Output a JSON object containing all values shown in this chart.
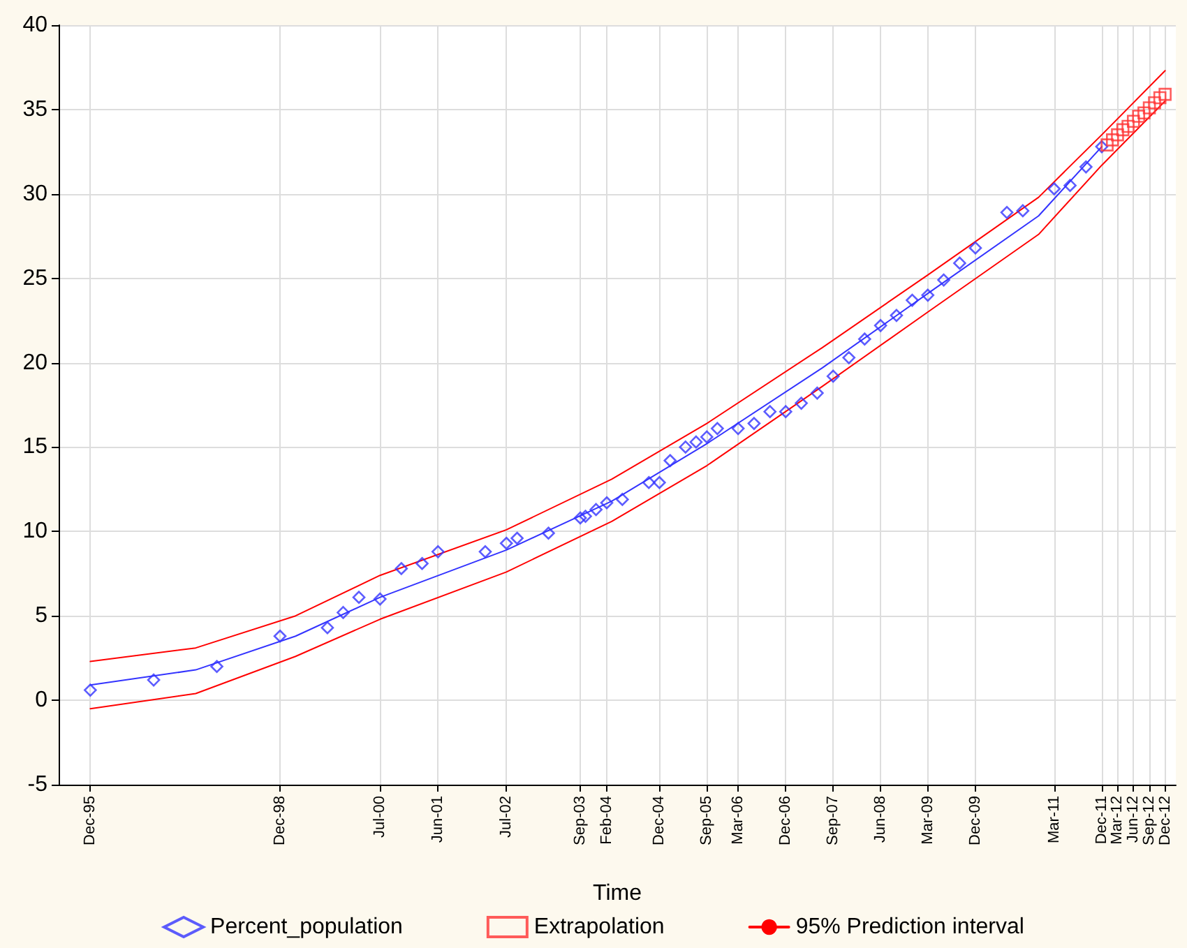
{
  "chart_data": {
    "type": "scatter",
    "xlabel": "Time",
    "xlim": [
      "1995-06",
      "2013-02"
    ],
    "ylim": [
      -5,
      40
    ],
    "xticks": [
      {
        "value": "1995-12",
        "label": "Dec-95"
      },
      {
        "value": "1998-12",
        "label": "Dec-98"
      },
      {
        "value": "2000-07",
        "label": "Jul-00"
      },
      {
        "value": "2001-06",
        "label": "Jun-01"
      },
      {
        "value": "2002-07",
        "label": "Jul-02"
      },
      {
        "value": "2003-09",
        "label": "Sep-03"
      },
      {
        "value": "2004-02",
        "label": "Feb-04"
      },
      {
        "value": "2004-12",
        "label": "Dec-04"
      },
      {
        "value": "2005-09",
        "label": "Sep-05"
      },
      {
        "value": "2006-03",
        "label": "Mar-06"
      },
      {
        "value": "2006-12",
        "label": "Dec-06"
      },
      {
        "value": "2007-09",
        "label": "Sep-07"
      },
      {
        "value": "2008-06",
        "label": "Jun-08"
      },
      {
        "value": "2009-03",
        "label": "Mar-09"
      },
      {
        "value": "2009-12",
        "label": "Dec-09"
      },
      {
        "value": "2011-03",
        "label": "Mar-11"
      },
      {
        "value": "2011-12",
        "label": "Dec-11"
      },
      {
        "value": "2012-03",
        "label": "Mar-12"
      },
      {
        "value": "2012-06",
        "label": "Jun-12"
      },
      {
        "value": "2012-09",
        "label": "Sep-12"
      },
      {
        "value": "2012-12",
        "label": "Dec-12"
      }
    ],
    "yticks": [
      -5,
      0,
      5,
      10,
      15,
      20,
      25,
      30,
      35,
      40
    ],
    "grid": true,
    "legend": "bottom",
    "series": [
      {
        "name": "Percent_population",
        "marker": "diamond",
        "color": "#3333ff",
        "x": [
          "1995-12",
          "1996-12",
          "1997-12",
          "1998-12",
          "1999-09",
          "1999-12",
          "2000-03",
          "2000-07",
          "2000-11",
          "2001-03",
          "2001-06",
          "2002-03",
          "2002-07",
          "2002-09",
          "2003-03",
          "2003-09",
          "2003-10",
          "2003-12",
          "2004-02",
          "2004-05",
          "2004-10",
          "2004-12",
          "2005-02",
          "2005-05",
          "2005-07",
          "2005-09",
          "2005-11",
          "2006-03",
          "2006-06",
          "2006-09",
          "2006-12",
          "2007-03",
          "2007-06",
          "2007-09",
          "2007-12",
          "2008-03",
          "2008-06",
          "2008-09",
          "2008-12",
          "2009-03",
          "2009-06",
          "2009-09",
          "2009-12",
          "2010-06",
          "2010-09",
          "2011-03",
          "2011-06",
          "2011-09",
          "2011-12"
        ],
        "values": [
          0.6,
          1.2,
          2.0,
          3.8,
          4.3,
          5.2,
          6.1,
          6.0,
          7.8,
          8.1,
          8.8,
          8.8,
          9.3,
          9.6,
          9.9,
          10.8,
          10.9,
          11.3,
          11.7,
          11.9,
          12.9,
          12.9,
          14.2,
          15.0,
          15.3,
          15.6,
          16.1,
          16.1,
          16.4,
          17.1,
          17.1,
          17.6,
          18.2,
          19.2,
          20.3,
          21.4,
          22.2,
          22.8,
          23.7,
          24.0,
          24.9,
          25.9,
          26.8,
          28.9,
          29.0,
          30.3,
          30.5,
          31.6,
          32.8
        ]
      },
      {
        "type": "line",
        "marker": "none",
        "line_style": "solid",
        "color": "#3333ff",
        "x": [
          "1995-12",
          "1997-08",
          "1999-03",
          "2000-07",
          "2002-07",
          "2004-03",
          "2005-09",
          "2007-07",
          "2009-03",
          "2010-12",
          "2011-12"
        ],
        "values": [
          0.9,
          1.8,
          3.8,
          6.1,
          8.9,
          11.8,
          15.2,
          19.7,
          24.1,
          28.7,
          32.8
        ]
      },
      {
        "name": "Extrapolation",
        "marker": "square",
        "color": "#ff3333",
        "x": [
          "2012-01",
          "2012-02",
          "2012-03",
          "2012-04",
          "2012-05",
          "2012-06",
          "2012-07",
          "2012-08",
          "2012-09",
          "2012-10",
          "2012-11",
          "2012-12"
        ],
        "values": [
          32.9,
          33.2,
          33.5,
          33.8,
          34.0,
          34.3,
          34.6,
          34.8,
          35.1,
          35.4,
          35.7,
          35.9
        ]
      },
      {
        "name": "95% Prediction interval",
        "type": "line",
        "marker": "none",
        "line_style": "solid",
        "color": "#ff0000",
        "x": [
          "1995-12",
          "1997-08",
          "1999-03",
          "2000-07",
          "2002-07",
          "2004-03",
          "2005-09",
          "2007-07",
          "2009-03",
          "2010-12",
          "2011-12",
          "2012-12"
        ],
        "values": [
          2.3,
          3.1,
          5.0,
          7.4,
          10.1,
          13.1,
          16.4,
          20.9,
          25.2,
          29.8,
          33.5,
          37.3
        ]
      },
      {
        "type": "line",
        "marker": "none",
        "line_style": "solid",
        "color": "#ff0000",
        "x": [
          "1995-12",
          "1997-08",
          "1999-03",
          "2000-07",
          "2002-07",
          "2004-03",
          "2005-09",
          "2007-07",
          "2009-03",
          "2010-12",
          "2011-12",
          "2012-12"
        ],
        "values": [
          -0.5,
          0.4,
          2.6,
          4.8,
          7.6,
          10.6,
          13.9,
          18.6,
          23.0,
          27.6,
          31.7,
          35.5
        ]
      }
    ]
  }
}
